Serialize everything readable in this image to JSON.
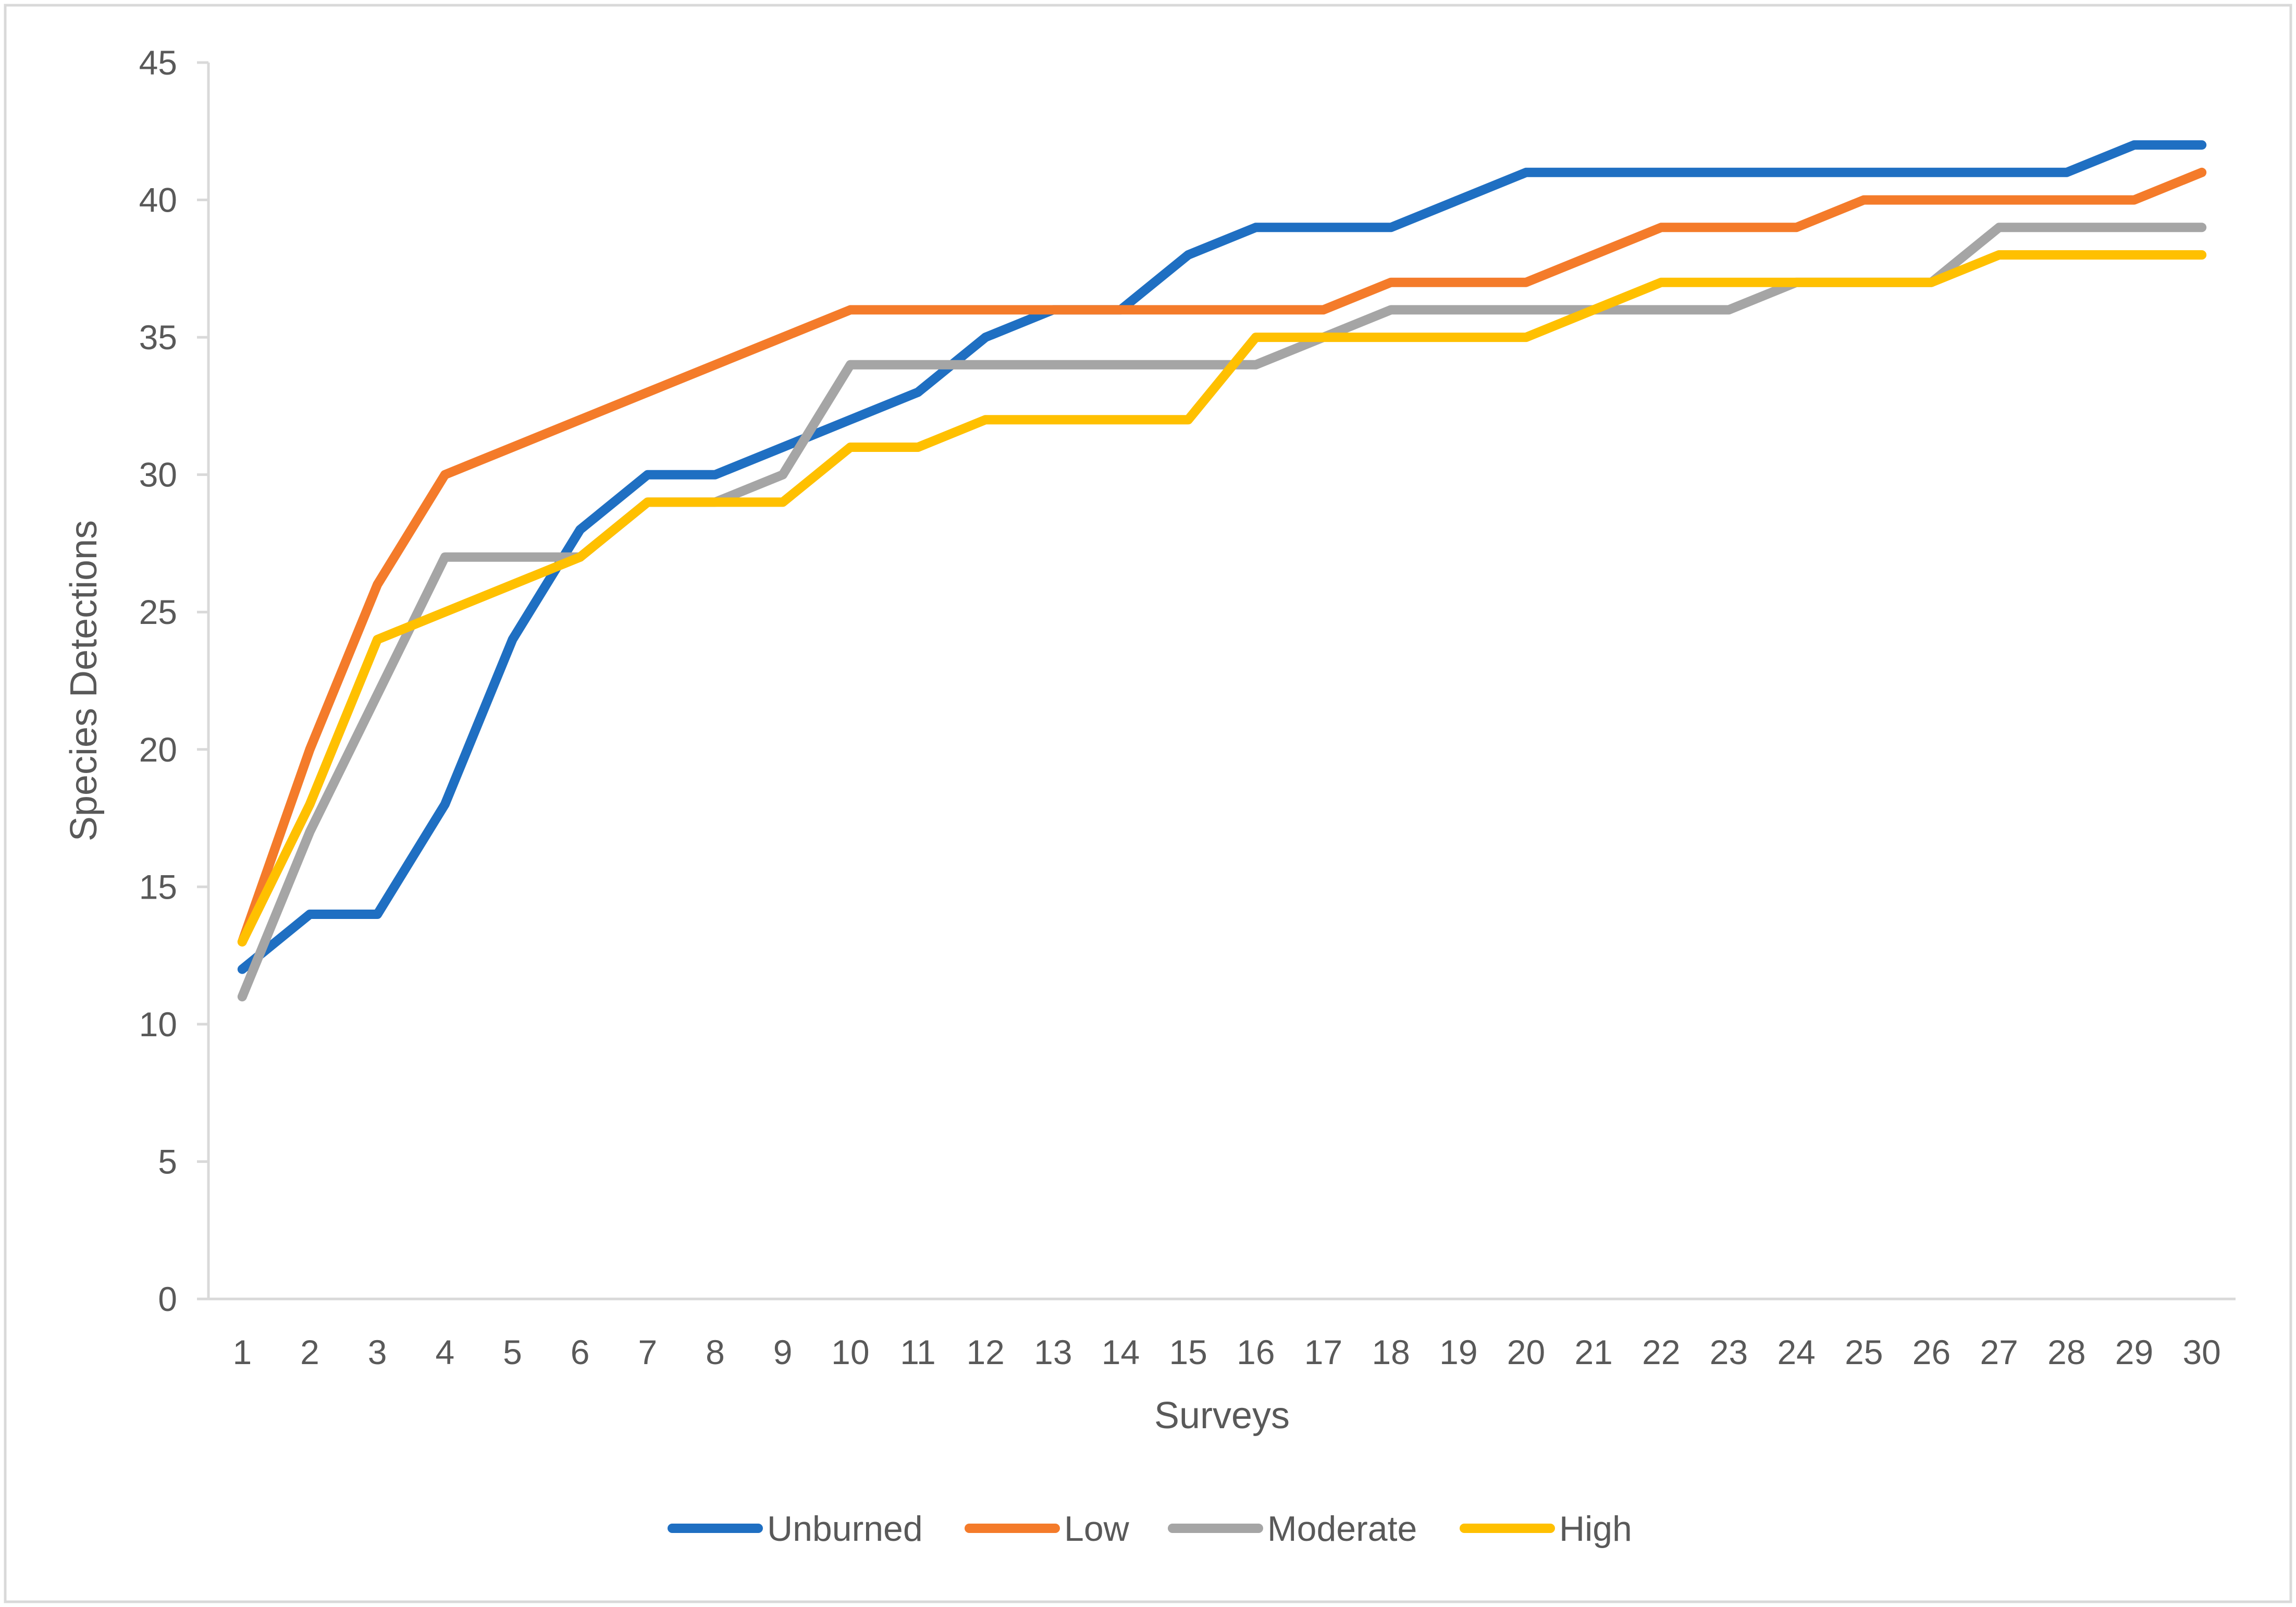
{
  "chart_data": {
    "type": "line",
    "title": "",
    "xlabel": "Surveys",
    "ylabel": "Species Detections",
    "x": [
      1,
      2,
      3,
      4,
      5,
      6,
      7,
      8,
      9,
      10,
      11,
      12,
      13,
      14,
      15,
      16,
      17,
      18,
      19,
      20,
      21,
      22,
      23,
      24,
      25,
      26,
      27,
      28,
      29,
      30
    ],
    "ylim": [
      0,
      45
    ],
    "yticks": [
      0,
      5,
      10,
      15,
      20,
      25,
      30,
      35,
      40,
      45
    ],
    "grid": false,
    "legend_position": "bottom",
    "series": [
      {
        "name": "Unburned",
        "color": "#1F6FC2",
        "values": [
          12,
          14,
          14,
          18,
          24,
          28,
          30,
          30,
          31,
          32,
          33,
          35,
          36,
          36,
          38,
          39,
          39,
          39,
          40,
          41,
          41,
          41,
          41,
          41,
          41,
          41,
          41,
          41,
          42,
          42
        ]
      },
      {
        "name": "Low",
        "color": "#F47B2A",
        "values": [
          13,
          20,
          26,
          30,
          31,
          32,
          33,
          34,
          35,
          36,
          36,
          36,
          36,
          36,
          36,
          36,
          36,
          37,
          37,
          37,
          38,
          39,
          39,
          39,
          40,
          40,
          40,
          40,
          40,
          41
        ]
      },
      {
        "name": "Moderate",
        "color": "#A5A5A5",
        "values": [
          11,
          17,
          22,
          27,
          27,
          27,
          29,
          29,
          30,
          34,
          34,
          34,
          34,
          34,
          34,
          34,
          35,
          36,
          36,
          36,
          36,
          36,
          36,
          37,
          37,
          37,
          39,
          39,
          39,
          39
        ]
      },
      {
        "name": "High",
        "color": "#FFC000",
        "values": [
          13,
          18,
          24,
          25,
          26,
          27,
          29,
          29,
          29,
          31,
          31,
          32,
          32,
          32,
          32,
          35,
          35,
          35,
          35,
          35,
          36,
          37,
          37,
          37,
          37,
          37,
          38,
          38,
          38,
          38
        ]
      }
    ]
  }
}
